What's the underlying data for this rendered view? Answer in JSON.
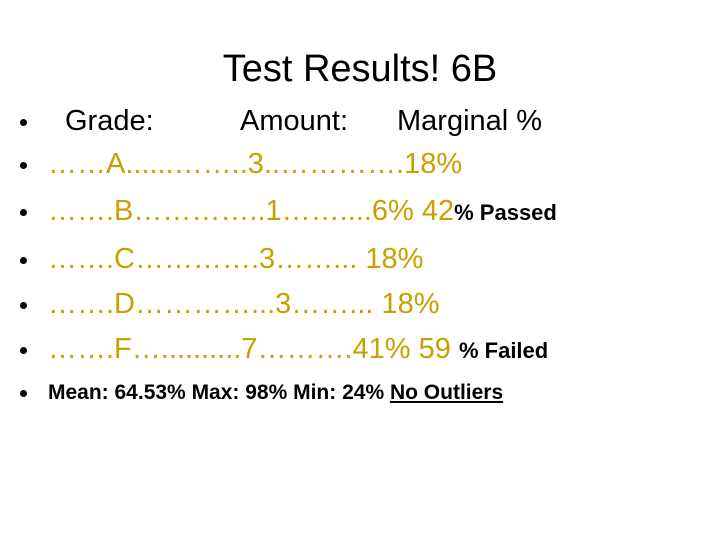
{
  "title": "Test Results! 6B",
  "header": [
    "Grade:",
    "Amount:",
    "Marginal %"
  ],
  "rows": [
    {
      "text": "……A......……..3..………….18%"
    },
    {
      "text": "…….B…………..1……....6%",
      "note_value": "42",
      "note_label": "% Passed"
    },
    {
      "text": "…….C………….3……... 18%"
    },
    {
      "text": "…….D…………...3……... 18%"
    },
    {
      "text": "…….F…..........7……….41%",
      "note_value": "59",
      "note_label": "% Failed"
    }
  ],
  "summary": {
    "stats": "Mean: 64.53% Max: 98% Min: 24%",
    "outliers": "No Outliers"
  }
}
